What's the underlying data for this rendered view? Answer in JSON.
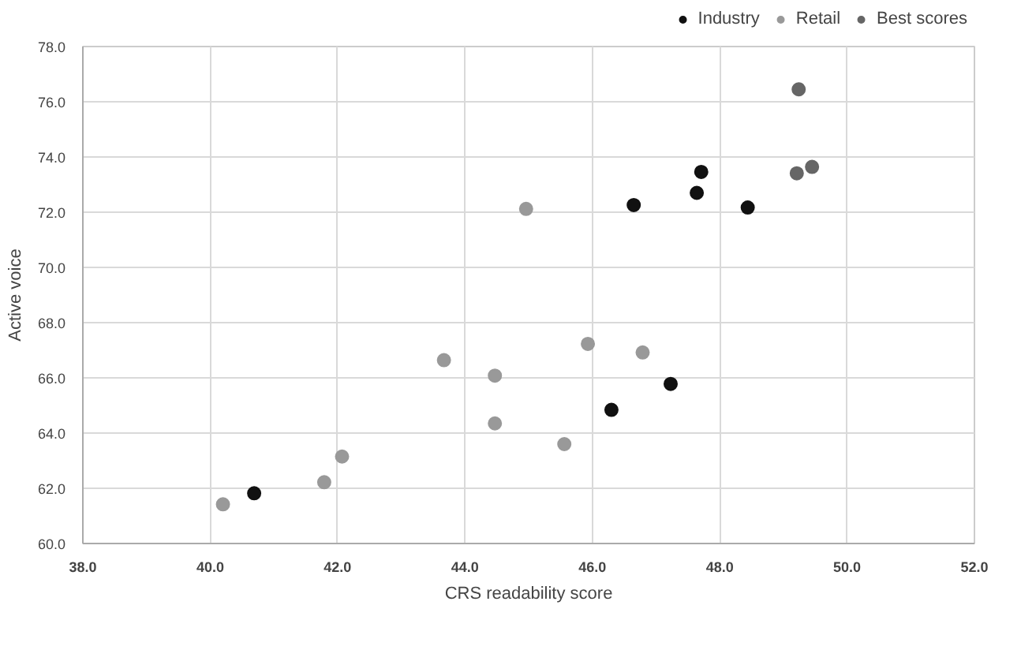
{
  "chart_data": {
    "type": "scatter",
    "xlabel": "CRS readability score",
    "ylabel": "Active voice",
    "xlim": [
      38,
      52
    ],
    "xticks": [
      {
        "value": 38,
        "label": "38.0"
      },
      {
        "value": 40,
        "label": "40.0"
      },
      {
        "value": 42,
        "label": "42.0"
      },
      {
        "value": 44,
        "label": "44.0"
      },
      {
        "value": 46,
        "label": "46.0"
      },
      {
        "value": 48,
        "label": "48.0"
      },
      {
        "value": 50,
        "label": "50.0"
      },
      {
        "value": 52,
        "label": "52.0"
      }
    ],
    "ylim": [
      60,
      78
    ],
    "yticks": [
      {
        "value": 60,
        "label": "60.0"
      },
      {
        "value": 62,
        "label": "62.0"
      },
      {
        "value": 64,
        "label": "64.0"
      },
      {
        "value": 66,
        "label": "66.0"
      },
      {
        "value": 68,
        "label": "68.0"
      },
      {
        "value": 70,
        "label": "70.0"
      },
      {
        "value": 72,
        "label": "72.0"
      },
      {
        "value": 74,
        "label": "74.0"
      },
      {
        "value": 76,
        "label": "76.0"
      },
      {
        "value": 78,
        "label": "78.0"
      }
    ],
    "grid": true,
    "legend": "top right",
    "marker": "circle",
    "series": [
      {
        "name": "Industry",
        "color": "#111111",
        "x": [
          47.71,
          47.64,
          46.65,
          48.44,
          47.23,
          46.3,
          40.69
        ],
        "values": [
          73.46,
          72.7,
          72.26,
          72.17,
          65.78,
          64.84,
          61.82
        ]
      },
      {
        "name": "Retail",
        "color": "#999999",
        "x": [
          44.96,
          45.93,
          46.79,
          43.67,
          44.47,
          44.47,
          45.56,
          42.07,
          41.79,
          40.2
        ],
        "values": [
          72.12,
          67.23,
          66.92,
          66.64,
          66.08,
          64.35,
          63.6,
          63.15,
          62.22,
          61.42
        ]
      },
      {
        "name": "Best scores",
        "color": "#666666",
        "x": [
          49.24,
          49.45,
          49.21
        ],
        "values": [
          76.45,
          73.64,
          73.41
        ]
      }
    ]
  }
}
